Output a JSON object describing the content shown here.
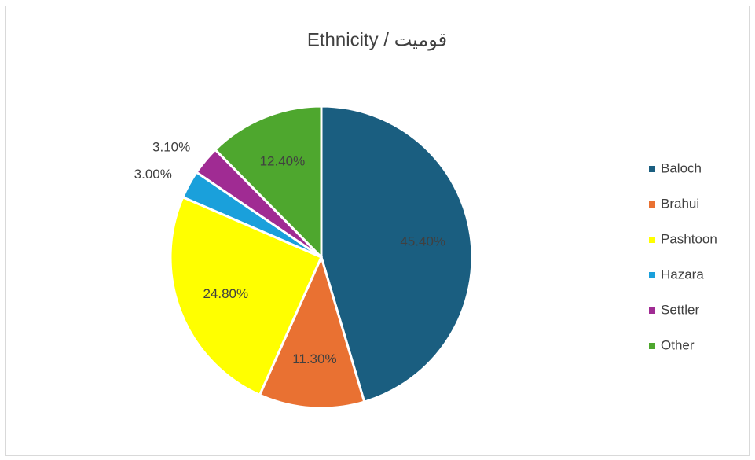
{
  "chart_data": {
    "type": "pie",
    "title": "Ethnicity / قوميت",
    "categories": [
      "Baloch",
      "Brahui",
      "Pashtoon",
      "Hazara",
      "Settler",
      "Other"
    ],
    "values": [
      45.4,
      11.3,
      24.8,
      3.0,
      3.1,
      12.4
    ],
    "value_labels": [
      "45.40%",
      "11.30%",
      "24.80%",
      "3.00%",
      "3.10%",
      "12.40%"
    ],
    "colors": [
      "#1a5e80",
      "#e97132",
      "#ffff00",
      "#1aa0db",
      "#a02b93",
      "#4ea72e"
    ],
    "legend": "right"
  }
}
